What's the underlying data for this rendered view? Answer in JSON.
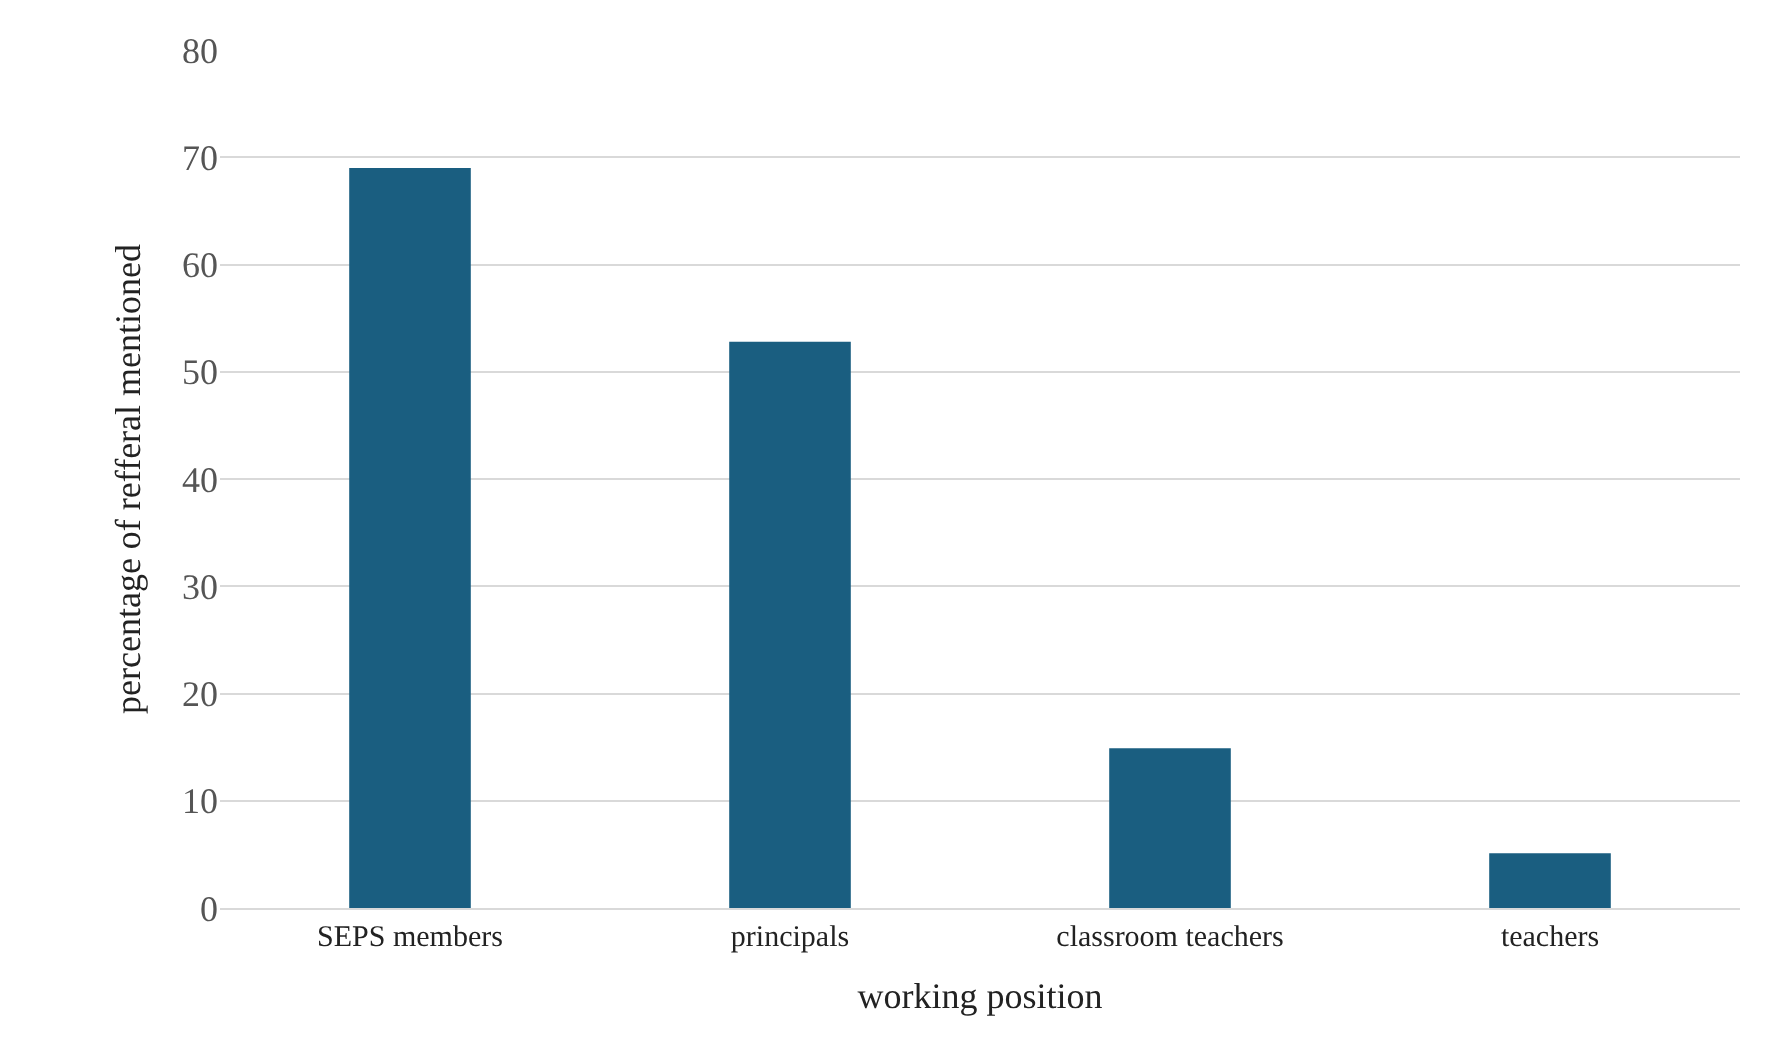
{
  "chart_data": {
    "type": "bar",
    "xlabel": "working position",
    "ylabel": "percentage of refferal mentioned",
    "categories": [
      "SEPS members",
      "principals",
      "classroom teachers",
      "teachers"
    ],
    "values": [
      69,
      52.8,
      14.9,
      5.1
    ],
    "color": "#1a5e80",
    "ylim": [
      0,
      80
    ],
    "yticks": [
      0,
      10,
      20,
      30,
      40,
      50,
      60,
      70,
      80
    ],
    "grid": "y"
  }
}
